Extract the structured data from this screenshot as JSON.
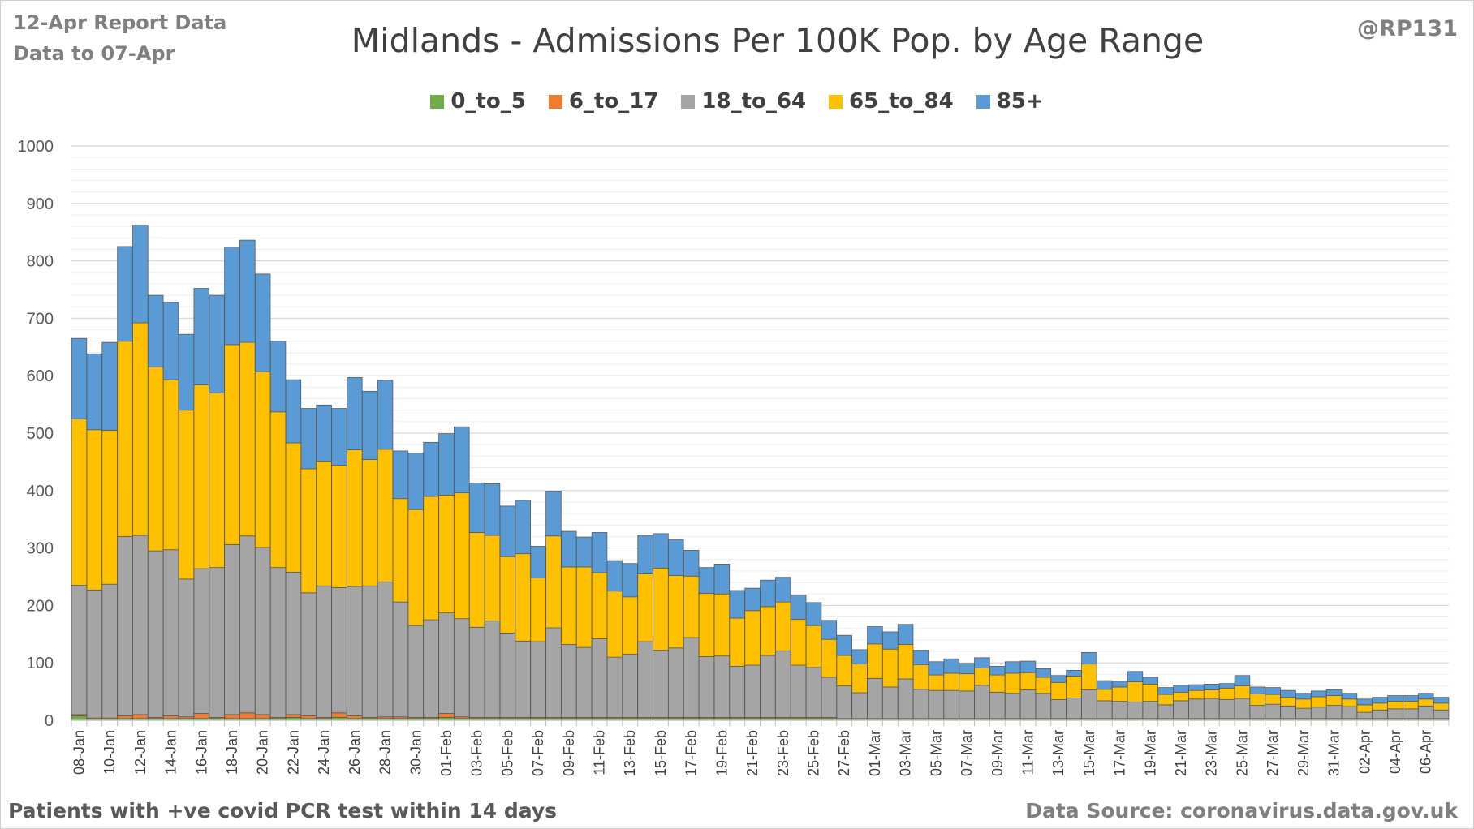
{
  "header": {
    "report_date": "12-Apr Report Data",
    "data_to": "Data to 07-Apr",
    "handle": "@RP131"
  },
  "footer": {
    "note": "Patients with  +ve covid PCR test within 14 days",
    "source": "Data Source: coronavirus.data.gov.uk"
  },
  "colors": {
    "0_to_5": "#70ad47",
    "6_to_17": "#ed7d31",
    "18_to_64": "#a5a5a5",
    "65_to_84": "#ffc000",
    "85+": "#5b9bd5",
    "outline": "#595959",
    "grid": "#d9d9d9"
  },
  "chart_data": {
    "type": "bar",
    "stacked": true,
    "title": "Midlands - Admissions Per 100K Pop. by Age Range",
    "xlabel": "",
    "ylabel": "",
    "ylim": [
      0,
      1000
    ],
    "y_ticks": [
      0,
      100,
      200,
      300,
      400,
      500,
      600,
      700,
      800,
      900,
      1000
    ],
    "grid": true,
    "legend_position": "top",
    "categories": [
      "08-Jan",
      "09-Jan",
      "10-Jan",
      "11-Jan",
      "12-Jan",
      "13-Jan",
      "14-Jan",
      "15-Jan",
      "16-Jan",
      "17-Jan",
      "18-Jan",
      "19-Jan",
      "20-Jan",
      "21-Jan",
      "22-Jan",
      "23-Jan",
      "24-Jan",
      "25-Jan",
      "26-Jan",
      "27-Jan",
      "28-Jan",
      "29-Jan",
      "30-Jan",
      "31-Jan",
      "01-Feb",
      "02-Feb",
      "03-Feb",
      "04-Feb",
      "05-Feb",
      "06-Feb",
      "07-Feb",
      "08-Feb",
      "09-Feb",
      "10-Feb",
      "11-Feb",
      "12-Feb",
      "13-Feb",
      "14-Feb",
      "15-Feb",
      "16-Feb",
      "17-Feb",
      "18-Feb",
      "19-Feb",
      "20-Feb",
      "21-Feb",
      "22-Feb",
      "23-Feb",
      "24-Feb",
      "25-Feb",
      "26-Feb",
      "27-Feb",
      "28-Feb",
      "01-Mar",
      "02-Mar",
      "03-Mar",
      "04-Mar",
      "05-Mar",
      "06-Mar",
      "07-Mar",
      "08-Mar",
      "09-Mar",
      "10-Mar",
      "11-Mar",
      "12-Mar",
      "13-Mar",
      "14-Mar",
      "15-Mar",
      "16-Mar",
      "17-Mar",
      "18-Mar",
      "19-Mar",
      "20-Mar",
      "21-Mar",
      "22-Mar",
      "23-Mar",
      "24-Mar",
      "25-Mar",
      "26-Mar",
      "27-Mar",
      "28-Mar",
      "29-Mar",
      "30-Mar",
      "31-Mar",
      "01-Apr",
      "02-Apr",
      "03-Apr",
      "04-Apr",
      "05-Apr",
      "06-Apr",
      "07-Apr"
    ],
    "x_tick_labels": [
      "08-Jan",
      "10-Jan",
      "12-Jan",
      "14-Jan",
      "16-Jan",
      "18-Jan",
      "20-Jan",
      "22-Jan",
      "24-Jan",
      "26-Jan",
      "28-Jan",
      "30-Jan",
      "01-Feb",
      "03-Feb",
      "05-Feb",
      "07-Feb",
      "09-Feb",
      "11-Feb",
      "13-Feb",
      "15-Feb",
      "17-Feb",
      "19-Feb",
      "21-Feb",
      "23-Feb",
      "25-Feb",
      "27-Feb",
      "01-Mar",
      "03-Mar",
      "05-Mar",
      "07-Mar",
      "09-Mar",
      "11-Mar",
      "13-Mar",
      "15-Mar",
      "17-Mar",
      "19-Mar",
      "21-Mar",
      "23-Mar",
      "25-Mar",
      "27-Mar",
      "29-Mar",
      "31-Mar",
      "02-Apr",
      "04-Apr",
      "06-Apr"
    ],
    "series": [
      {
        "name": "0_to_5",
        "values": [
          8,
          2,
          2,
          3,
          3,
          3,
          3,
          3,
          3,
          3,
          3,
          3,
          3,
          3,
          5,
          3,
          3,
          5,
          3,
          3,
          3,
          3,
          3,
          3,
          5,
          3,
          3,
          3,
          3,
          3,
          3,
          3,
          3,
          3,
          3,
          3,
          3,
          3,
          3,
          3,
          3,
          3,
          3,
          3,
          3,
          3,
          3,
          3,
          3,
          3,
          2,
          2,
          2,
          2,
          2,
          2,
          2,
          2,
          2,
          2,
          2,
          2,
          2,
          2,
          2,
          2,
          2,
          2,
          2,
          2,
          2,
          2,
          2,
          2,
          2,
          2,
          2,
          2,
          2,
          2,
          2,
          2,
          2,
          2,
          2,
          2,
          2,
          2,
          2,
          2
        ]
      },
      {
        "name": "6_to_17",
        "values": [
          2,
          2,
          2,
          5,
          7,
          2,
          5,
          3,
          9,
          2,
          7,
          10,
          7,
          2,
          5,
          5,
          2,
          8,
          5,
          2,
          3,
          3,
          2,
          2,
          7,
          3,
          2,
          2,
          2,
          2,
          2,
          2,
          2,
          2,
          2,
          2,
          2,
          2,
          2,
          2,
          2,
          2,
          2,
          2,
          2,
          2,
          2,
          2,
          2,
          2,
          1,
          1,
          1,
          1,
          1,
          1,
          1,
          1,
          1,
          1,
          1,
          1,
          1,
          1,
          1,
          1,
          1,
          1,
          1,
          1,
          1,
          1,
          1,
          1,
          1,
          1,
          1,
          1,
          1,
          1,
          1,
          1,
          1,
          1,
          1,
          1,
          1,
          1,
          1,
          1
        ]
      },
      {
        "name": "18_to_64",
        "values": [
          225,
          223,
          233,
          312,
          312,
          290,
          289,
          240,
          252,
          261,
          296,
          308,
          291,
          261,
          248,
          214,
          229,
          218,
          225,
          229,
          235,
          200,
          160,
          170,
          175,
          171,
          157,
          168,
          147,
          133,
          132,
          156,
          127,
          122,
          137,
          105,
          110,
          132,
          117,
          121,
          139,
          106,
          107,
          89,
          91,
          108,
          116,
          91,
          87,
          70,
          57,
          45,
          70,
          55,
          69,
          51,
          49,
          49,
          48,
          58,
          46,
          44,
          50,
          44,
          33,
          36,
          50,
          31,
          30,
          29,
          30,
          24,
          31,
          34,
          35,
          33,
          35,
          23,
          25,
          22,
          18,
          20,
          23,
          21,
          11,
          15,
          17,
          17,
          22,
          15
        ]
      },
      {
        "name": "65_to_84",
        "values": [
          290,
          279,
          268,
          340,
          370,
          320,
          296,
          294,
          320,
          304,
          348,
          337,
          306,
          271,
          225,
          216,
          217,
          213,
          238,
          220,
          231,
          180,
          202,
          215,
          205,
          219,
          165,
          149,
          133,
          152,
          111,
          160,
          135,
          140,
          115,
          115,
          100,
          118,
          143,
          126,
          107,
          110,
          108,
          84,
          95,
          85,
          85,
          80,
          73,
          66,
          53,
          50,
          60,
          66,
          60,
          43,
          27,
          30,
          30,
          30,
          30,
          35,
          30,
          28,
          30,
          38,
          45,
          20,
          25,
          35,
          30,
          18,
          15,
          15,
          15,
          20,
          22,
          20,
          17,
          15,
          16,
          18,
          17,
          13,
          13,
          12,
          13,
          13,
          12,
          12
        ]
      },
      {
        "name": "85+",
        "values": [
          140,
          132,
          153,
          165,
          170,
          125,
          135,
          132,
          168,
          170,
          170,
          178,
          170,
          123,
          110,
          105,
          98,
          99,
          126,
          119,
          120,
          83,
          98,
          94,
          107,
          115,
          86,
          90,
          88,
          93,
          55,
          78,
          62,
          52,
          70,
          53,
          58,
          67,
          60,
          63,
          45,
          45,
          52,
          48,
          39,
          46,
          43,
          42,
          40,
          33,
          35,
          25,
          30,
          30,
          35,
          25,
          23,
          25,
          18,
          18,
          15,
          20,
          20,
          15,
          12,
          10,
          20,
          15,
          10,
          18,
          12,
          12,
          12,
          10,
          10,
          8,
          18,
          12,
          12,
          12,
          10,
          10,
          10,
          10,
          10,
          10,
          10,
          10,
          10,
          10
        ]
      }
    ]
  }
}
